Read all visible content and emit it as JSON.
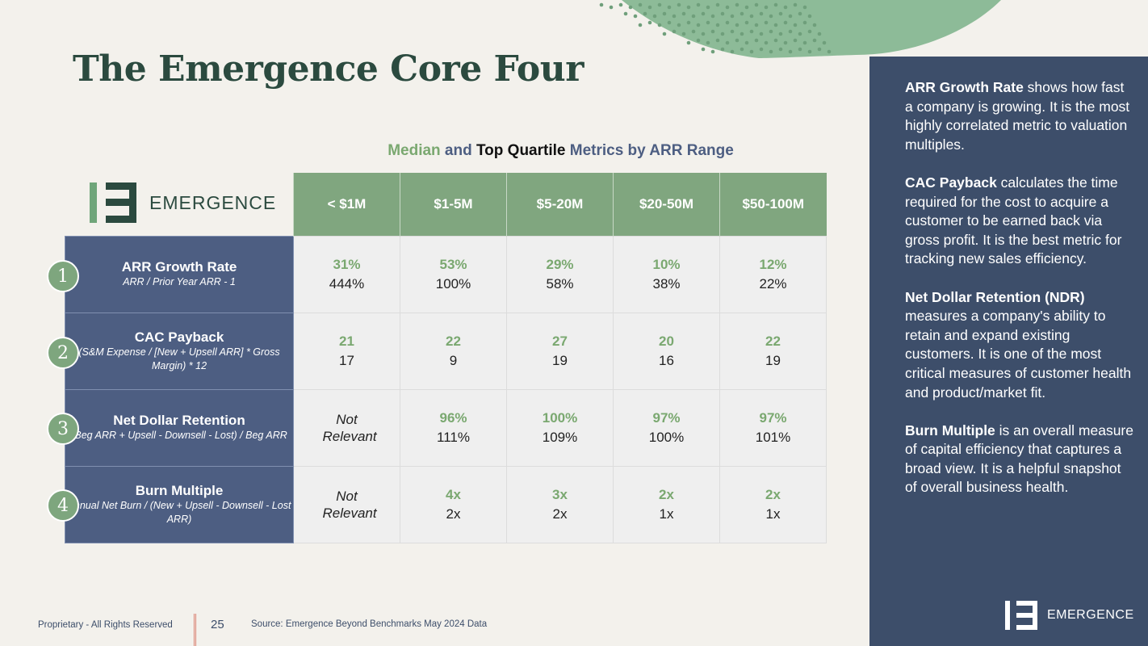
{
  "title": "The Emergence Core Four",
  "subtitle": {
    "part1": "Median",
    "part2": "and",
    "part3": "Top Quartile",
    "part4": "Metrics by ARR Range"
  },
  "logo_text": "EMERGENCE",
  "columns": [
    "< $1M",
    "$1-5M",
    "$5-20M",
    "$20-50M",
    "$50-100M"
  ],
  "rows": [
    {
      "num": "1",
      "name": "ARR Growth Rate",
      "formula": "ARR / Prior Year ARR - 1",
      "cells": [
        {
          "median": "31%",
          "top": "444%"
        },
        {
          "median": "53%",
          "top": "100%"
        },
        {
          "median": "29%",
          "top": "58%"
        },
        {
          "median": "10%",
          "top": "38%"
        },
        {
          "median": "12%",
          "top": "22%"
        }
      ]
    },
    {
      "num": "2",
      "name": "CAC Payback",
      "formula": "(S&M Expense / [New + Upsell ARR] * Gross Margin) * 12",
      "cells": [
        {
          "median": "21",
          "top": "17"
        },
        {
          "median": "22",
          "top": "9"
        },
        {
          "median": "27",
          "top": "19"
        },
        {
          "median": "20",
          "top": "16"
        },
        {
          "median": "22",
          "top": "19"
        }
      ]
    },
    {
      "num": "3",
      "name": "Net Dollar Retention",
      "formula": "(Beg ARR + Upsell - Downsell - Lost) / Beg ARR",
      "cells": [
        {
          "na": "Not Relevant"
        },
        {
          "median": "96%",
          "top": "111%"
        },
        {
          "median": "100%",
          "top": "109%"
        },
        {
          "median": "97%",
          "top": "100%"
        },
        {
          "median": "97%",
          "top": "101%"
        }
      ]
    },
    {
      "num": "4",
      "name": "Burn Multiple",
      "formula": "Annual Net Burn / (New + Upsell - Downsell - Lost ARR)",
      "cells": [
        {
          "na": "Not Relevant"
        },
        {
          "median": "4x",
          "top": "2x"
        },
        {
          "median": "3x",
          "top": "2x"
        },
        {
          "median": "2x",
          "top": "1x"
        },
        {
          "median": "2x",
          "top": "1x"
        }
      ]
    }
  ],
  "panel": [
    {
      "bold": "ARR Growth Rate",
      "text": " shows how fast a company is growing. It is the most highly correlated metric to valuation multiples."
    },
    {
      "bold": "CAC Payback",
      "text": " calculates the time required for the cost to acquire a customer to be earned back via gross profit. It is the best metric for tracking new sales efficiency."
    },
    {
      "bold": "Net Dollar Retention (NDR)",
      "text": " measures a company's ability to retain and expand existing customers. It is one of the most critical measures of customer health and product/market fit."
    },
    {
      "bold": "Burn Multiple",
      "text": " is an overall measure of capital efficiency that captures a broad view. It is a helpful snapshot of overall business health."
    }
  ],
  "panel_logo_text": "EMERGENCE",
  "footer": {
    "proprietary": "Proprietary - All Rights Reserved",
    "page": "25",
    "source": "Source: Emergence Beyond Benchmarks May 2024 Data"
  },
  "colors": {
    "green": "#80a67f",
    "navy": "#3d4e6a",
    "label_bg": "#4d5e82",
    "title": "#2b4a3f"
  }
}
